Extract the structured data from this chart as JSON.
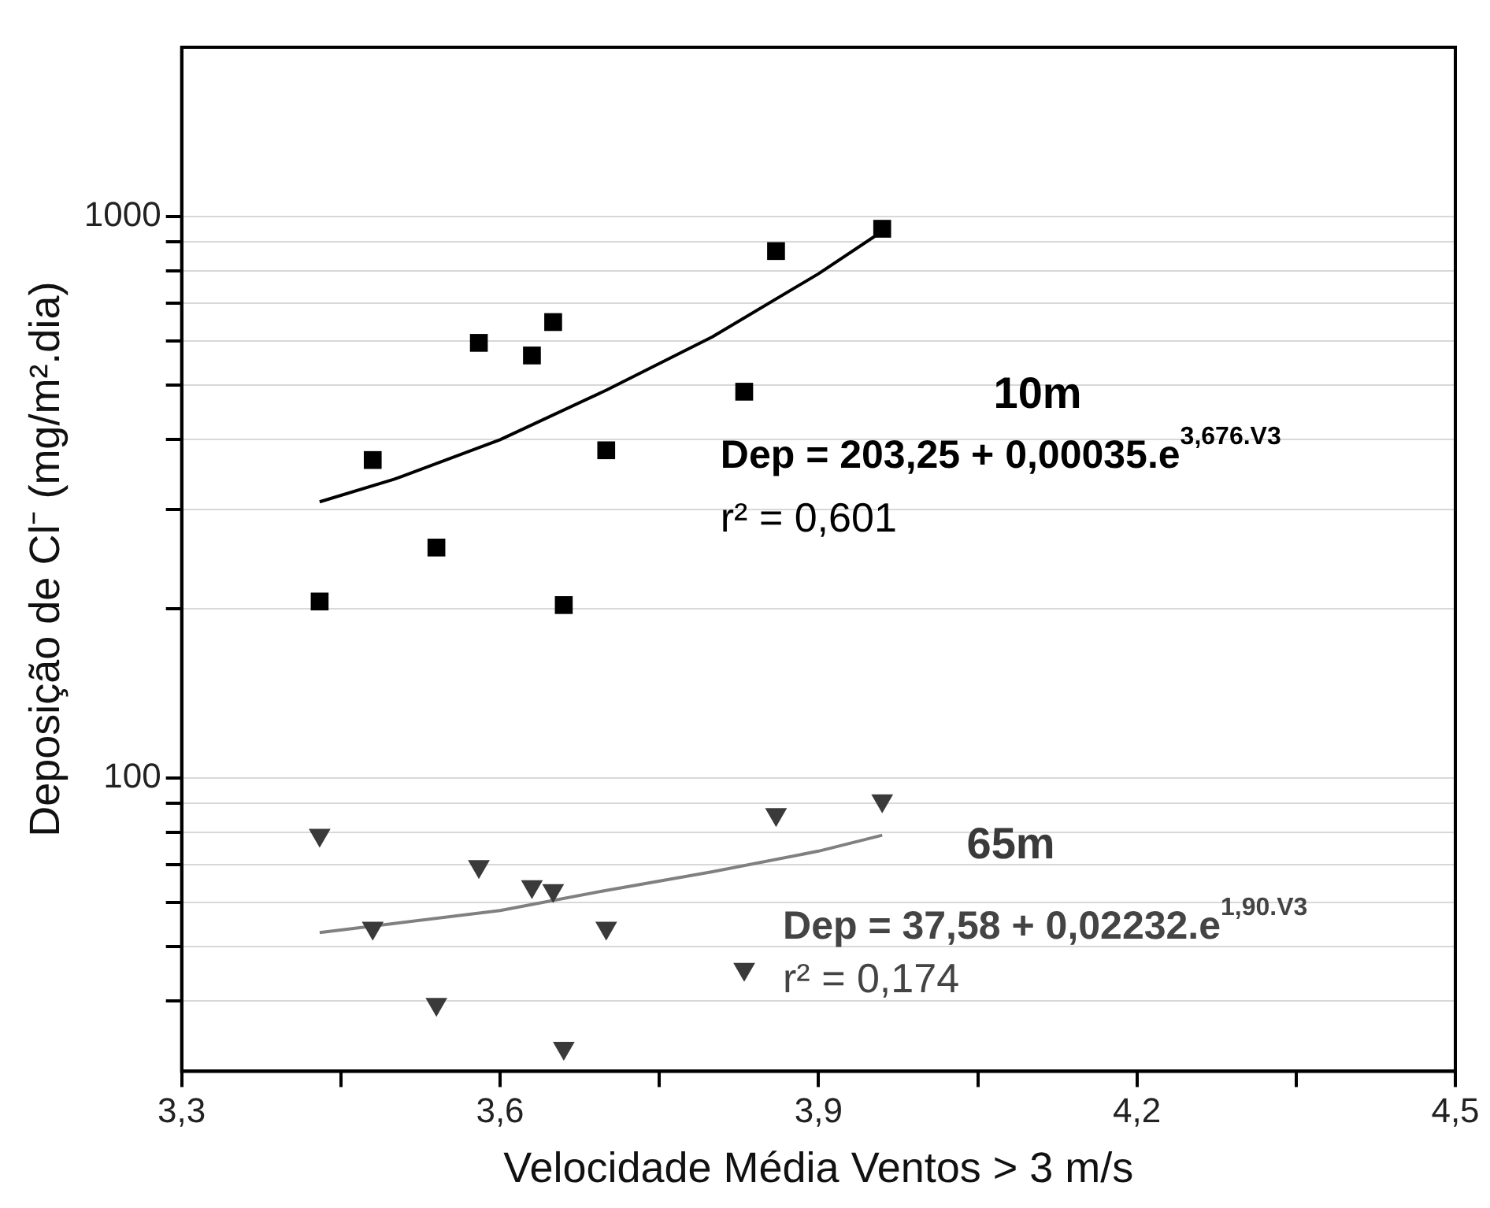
{
  "chart_data": {
    "type": "scatter",
    "xlabel": "Velocidade Média Ventos > 3 m/s",
    "ylabel": "Deposição de Cl⁻ (mg/m².dia)",
    "log": "y",
    "grid": "y",
    "legend": false,
    "xlim": [
      3.3,
      4.5
    ],
    "xticks": [
      {
        "value": 3.3,
        "label": "3,3"
      },
      {
        "value": 3.45,
        "label": null
      },
      {
        "value": 3.6,
        "label": "3,6"
      },
      {
        "value": 3.75,
        "label": null
      },
      {
        "value": 3.9,
        "label": "3,9"
      },
      {
        "value": 4.05,
        "label": null
      },
      {
        "value": 4.2,
        "label": "4,2"
      },
      {
        "value": 4.35,
        "label": null
      },
      {
        "value": 4.5,
        "label": "4,5"
      }
    ],
    "ylim": [
      30,
      2000
    ],
    "yticks": [
      {
        "value": 40,
        "label": null
      },
      {
        "value": 50,
        "label": null
      },
      {
        "value": 60,
        "label": null
      },
      {
        "value": 70,
        "label": null
      },
      {
        "value": 80,
        "label": null
      },
      {
        "value": 90,
        "label": null
      },
      100,
      {
        "value": 200,
        "label": null
      },
      {
        "value": 300,
        "label": null
      },
      {
        "value": 400,
        "label": null
      },
      {
        "value": 500,
        "label": null
      },
      {
        "value": 600,
        "label": null
      },
      {
        "value": 700,
        "label": null
      },
      {
        "value": 800,
        "label": null
      },
      {
        "value": 900,
        "label": null
      },
      1000
    ],
    "series": [
      {
        "name": "10m",
        "type": "scatter",
        "marker": "square",
        "color": "#000000",
        "x": [
          3.43,
          3.48,
          3.54,
          3.58,
          3.63,
          3.65,
          3.66,
          3.7,
          3.83,
          3.86,
          3.96
        ],
        "values": [
          206,
          368,
          257,
          595,
          565,
          648,
          203,
          383,
          487,
          867,
          950
        ]
      },
      {
        "type": "line",
        "marker": "none",
        "color": "#000000",
        "x": [
          3.43,
          3.5,
          3.6,
          3.7,
          3.8,
          3.9,
          3.96
        ],
        "values": [
          310,
          340,
          400,
          490,
          610,
          790,
          940
        ]
      },
      {
        "name": "65m",
        "type": "scatter",
        "marker": "triangle",
        "color": "#3a3a3a",
        "x": [
          3.43,
          3.48,
          3.54,
          3.58,
          3.63,
          3.65,
          3.66,
          3.7,
          3.83,
          3.86,
          3.96
        ],
        "values": [
          79,
          54,
          39.5,
          69.5,
          64,
          63,
          33,
          54,
          45.6,
          86,
          91
        ]
      },
      {
        "type": "line",
        "marker": "none",
        "color": "#808080",
        "x": [
          3.43,
          3.5,
          3.6,
          3.7,
          3.8,
          3.9,
          3.96
        ],
        "values": [
          53,
          55,
          58,
          63,
          68,
          74,
          79
        ]
      }
    ],
    "annotations": [
      "Dep = 203,25 + 0,00035.e$^{3,676.V3}$",
      "r² = 0,601",
      "Dep = 37,58 + 0,02232.e$^{1,90.V3}$",
      "r² = 0,174"
    ]
  }
}
